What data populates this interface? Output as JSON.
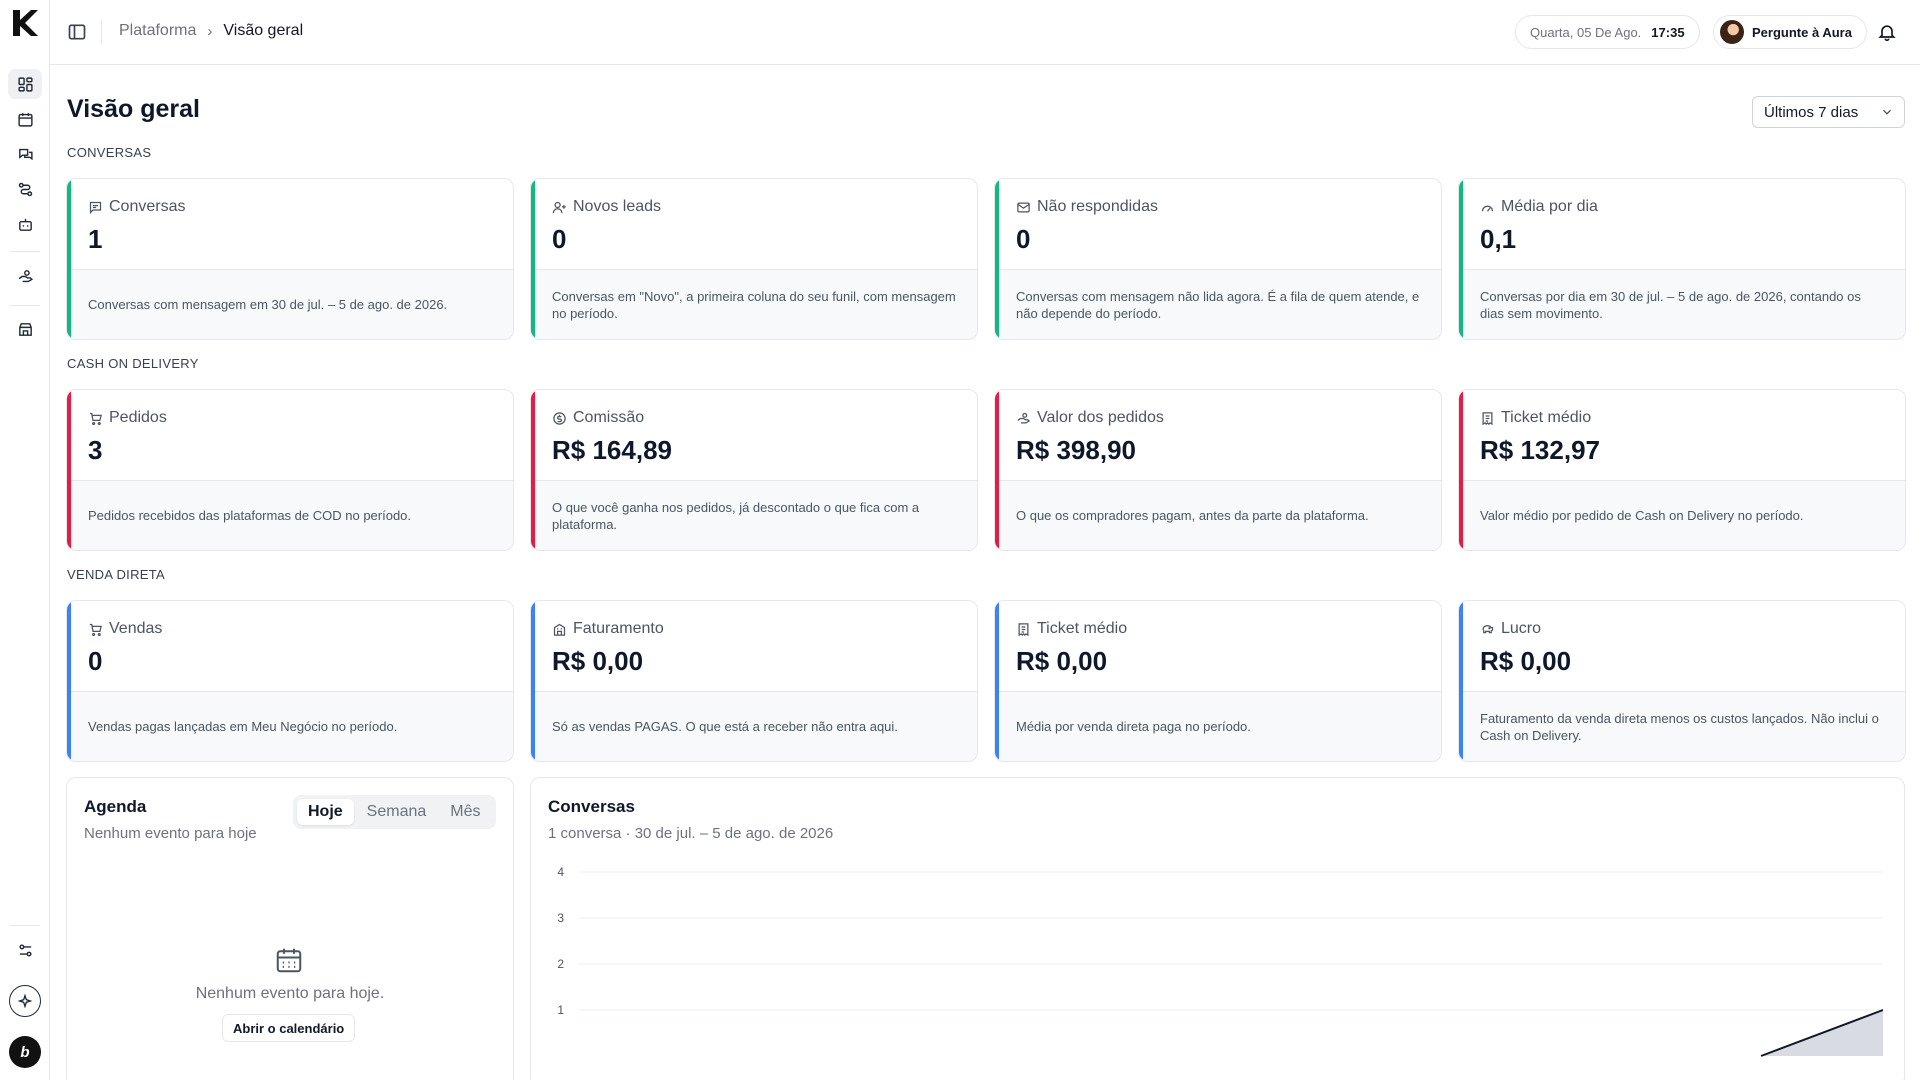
{
  "sidebar": {
    "nav": [
      {
        "icon": "dashboard-grid-icon",
        "active": true
      },
      {
        "icon": "calendar-icon"
      },
      {
        "icon": "chat-bubbles-icon"
      },
      {
        "icon": "route-icon"
      },
      {
        "icon": "bot-icon"
      },
      {
        "icon": "coins-hand-icon"
      },
      {
        "icon": "store-icon"
      }
    ],
    "bottom": [
      "settings-sliders-icon",
      "sparkle-badge-icon",
      "brand-avatar-icon"
    ],
    "brand_initials": "b"
  },
  "topbar": {
    "breadcrumb_root": "Plataforma",
    "breadcrumb_current": "Visão geral",
    "date": "Quarta, 05 De Ago.",
    "time": "17:35",
    "ask_aura": "Pergunte à Aura"
  },
  "page": {
    "title": "Visão geral",
    "range": "Últimos 7 dias"
  },
  "sections": {
    "conversas": "CONVERSAS",
    "cod": "CASH ON DELIVERY",
    "venda": "VENDA DIRETA"
  },
  "colors": {
    "conversas_accent": "#10b981",
    "cod_accent": "#e11d48",
    "venda_accent": "#3b82f6"
  },
  "cards": {
    "conversas": [
      {
        "icon": "message-square-icon",
        "label": "Conversas",
        "value": "1",
        "desc": "Conversas com mensagem em 30 de jul. – 5 de ago. de 2026."
      },
      {
        "icon": "user-plus-icon",
        "label": "Novos leads",
        "value": "0",
        "desc": "Conversas em \"Novo\", a primeira coluna do seu funil, com mensagem no período."
      },
      {
        "icon": "mail-icon",
        "label": "Não respondidas",
        "value": "0",
        "desc": "Conversas com mensagem não lida agora. É a fila de quem atende, e não depende do período."
      },
      {
        "icon": "gauge-icon",
        "label": "Média por dia",
        "value": "0,1",
        "desc": "Conversas por dia em 30 de jul. – 5 de ago. de 2026, contando os dias sem movimento."
      }
    ],
    "cod": [
      {
        "icon": "cart-icon",
        "label": "Pedidos",
        "value": "3",
        "desc": "Pedidos recebidos das plataformas de COD no período."
      },
      {
        "icon": "dollar-circle-icon",
        "label": "Comissão",
        "value": "R$ 164,89",
        "desc": "O que você ganha nos pedidos, já descontado o que fica com a plataforma."
      },
      {
        "icon": "hand-coins-icon",
        "label": "Valor dos pedidos",
        "value": "R$ 398,90",
        "desc": "O que os compradores pagam, antes da parte da plataforma."
      },
      {
        "icon": "receipt-icon",
        "label": "Ticket médio",
        "value": "R$ 132,97",
        "desc": "Valor médio por pedido de Cash on Delivery no período."
      }
    ],
    "venda": [
      {
        "icon": "cart-icon",
        "label": "Vendas",
        "value": "0",
        "desc": "Vendas pagas lançadas em Meu Negócio no período."
      },
      {
        "icon": "building-icon",
        "label": "Faturamento",
        "value": "R$ 0,00",
        "desc": "Só as vendas PAGAS. O que está a receber não entra aqui."
      },
      {
        "icon": "receipt-icon",
        "label": "Ticket médio",
        "value": "R$ 0,00",
        "desc": "Média por venda direta paga no período."
      },
      {
        "icon": "piggy-bank-icon",
        "label": "Lucro",
        "value": "R$ 0,00",
        "desc": "Faturamento da venda direta menos os custos lançados. Não inclui o Cash on Delivery."
      }
    ]
  },
  "agenda": {
    "title": "Agenda",
    "subtitle": "Nenhum evento para hoje",
    "tabs": [
      "Hoje",
      "Semana",
      "Mês"
    ],
    "active_tab": "Hoje",
    "empty_text": "Nenhum evento para hoje.",
    "open_button": "Abrir o calendário"
  },
  "chart_data": {
    "type": "area",
    "title": "Conversas",
    "subtitle": "1 conversa · 30 de jul. – 5 de ago. de 2026",
    "ylim": [
      0,
      4
    ],
    "yticks": [
      "4",
      "3",
      "2",
      "1"
    ],
    "grid": true,
    "series": [
      {
        "x": [
          0,
          1
        ],
        "values": [
          0,
          1
        ]
      }
    ]
  }
}
